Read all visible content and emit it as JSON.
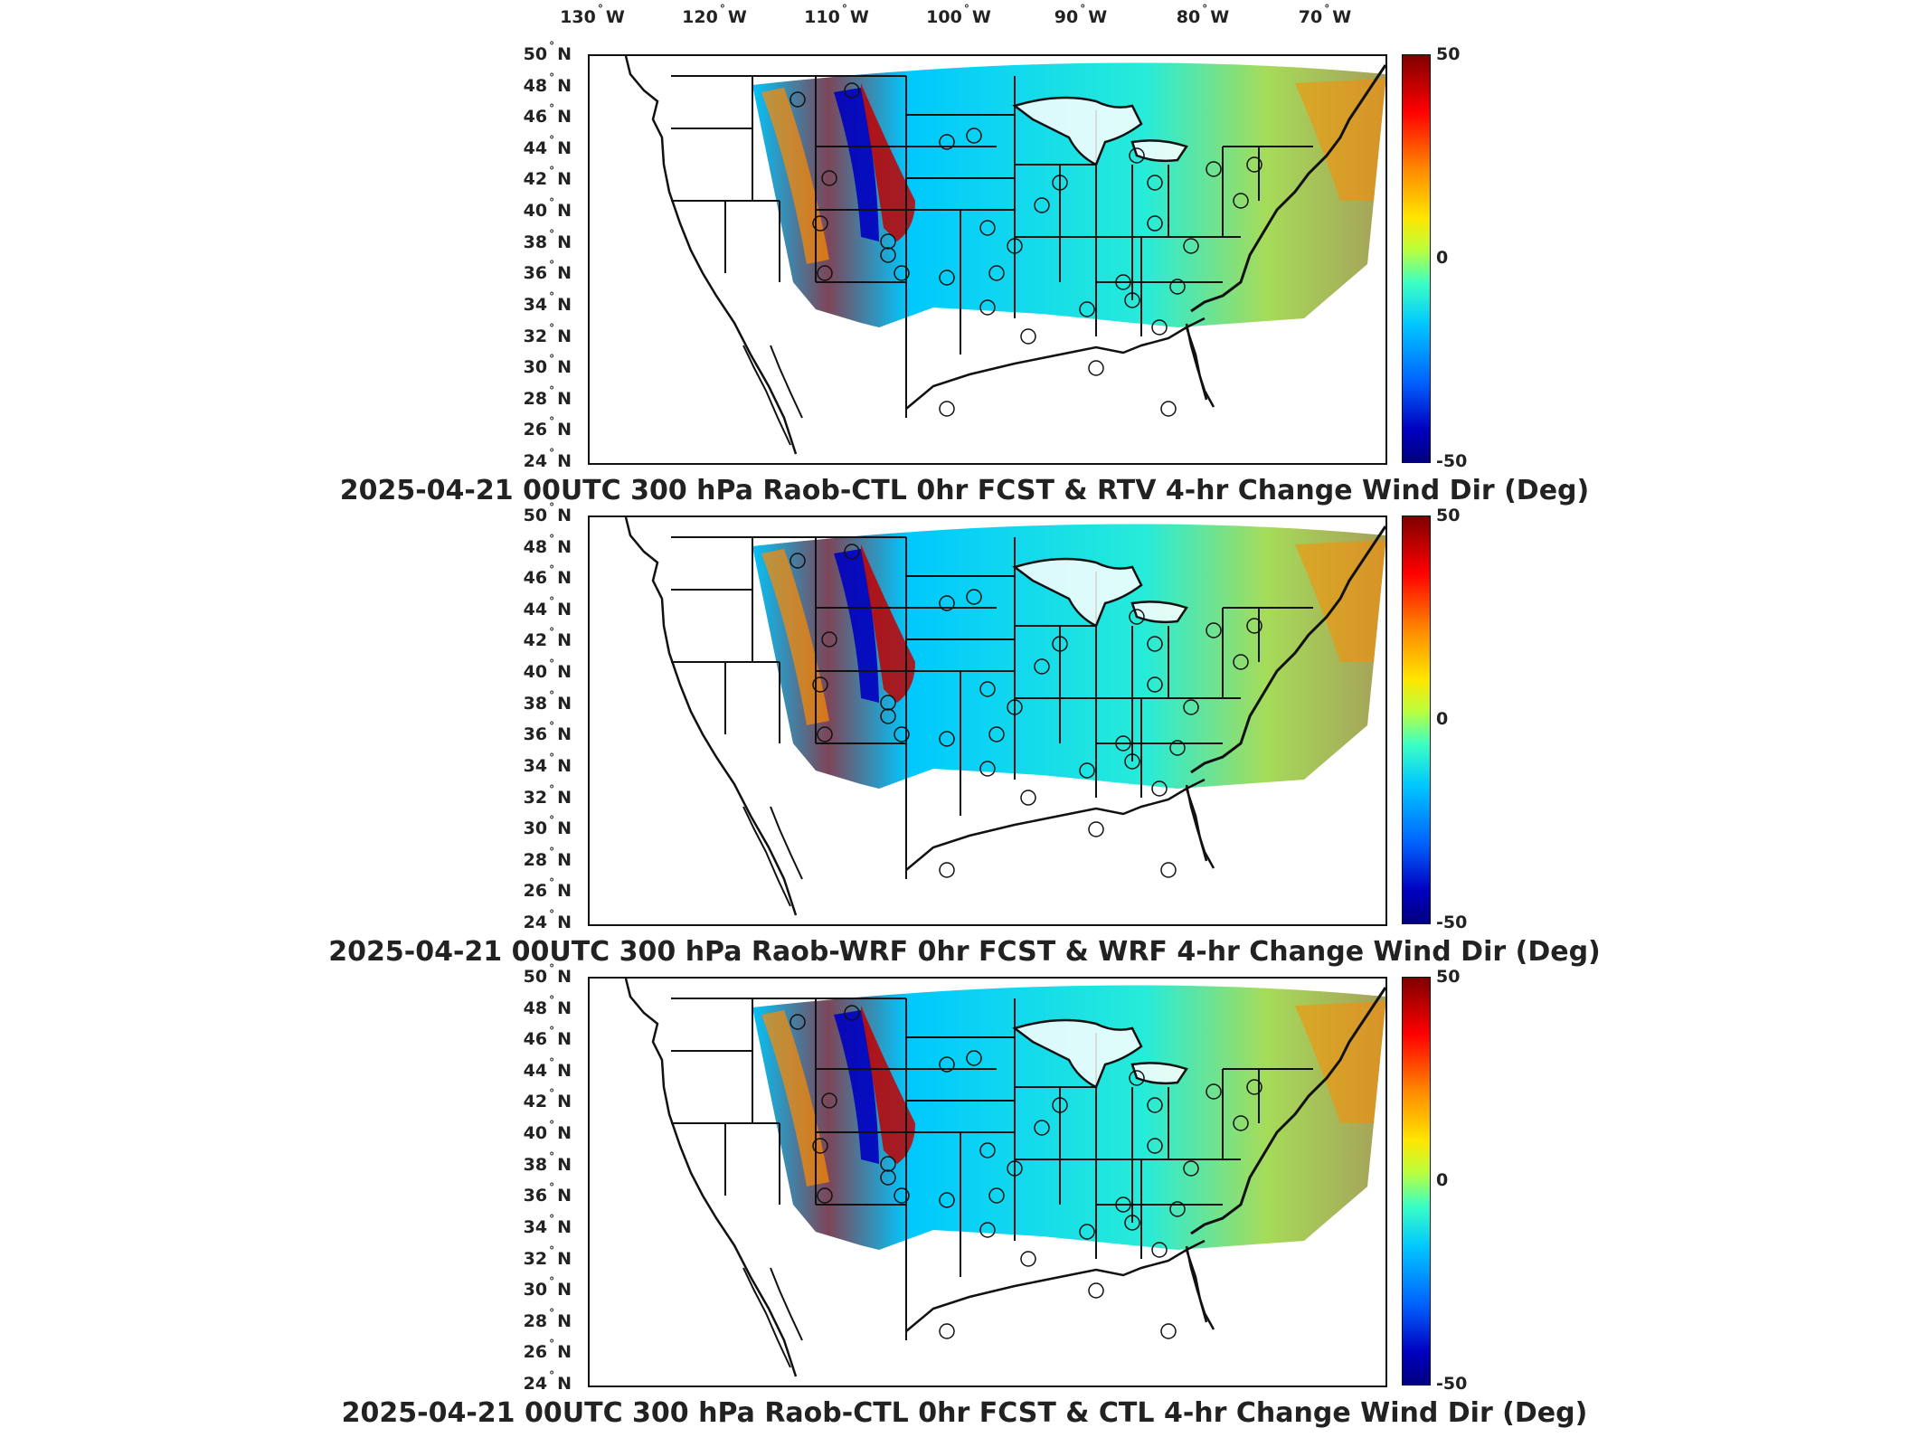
{
  "lon_labels": [
    {
      "deg": "130",
      "hemi": "W"
    },
    {
      "deg": "120",
      "hemi": "W"
    },
    {
      "deg": "110",
      "hemi": "W"
    },
    {
      "deg": "100",
      "hemi": "W"
    },
    {
      "deg": "90",
      "hemi": "W"
    },
    {
      "deg": "80",
      "hemi": "W"
    },
    {
      "deg": "70",
      "hemi": "W"
    }
  ],
  "lat_labels": [
    {
      "deg": "50",
      "hemi": "N"
    },
    {
      "deg": "48",
      "hemi": "N"
    },
    {
      "deg": "46",
      "hemi": "N"
    },
    {
      "deg": "44",
      "hemi": "N"
    },
    {
      "deg": "42",
      "hemi": "N"
    },
    {
      "deg": "40",
      "hemi": "N"
    },
    {
      "deg": "38",
      "hemi": "N"
    },
    {
      "deg": "36",
      "hemi": "N"
    },
    {
      "deg": "34",
      "hemi": "N"
    },
    {
      "deg": "32",
      "hemi": "N"
    },
    {
      "deg": "30",
      "hemi": "N"
    },
    {
      "deg": "28",
      "hemi": "N"
    },
    {
      "deg": "26",
      "hemi": "N"
    },
    {
      "deg": "24",
      "hemi": "N"
    }
  ],
  "colorbar": {
    "max": "50",
    "mid": "0",
    "min": "-50"
  },
  "colors": {
    "red": "#c00000",
    "orange": "#ff8a00",
    "yellow": "#ffe600",
    "green": "#3cffc4",
    "cyan": "#00c8ff",
    "blue": "#0000c0"
  },
  "panels": [
    {
      "title": "2025-04-21 00UTC 300 hPa Raob-CTL 0hr FCST & RTV 4-hr Change Wind Dir (Deg)"
    },
    {
      "title": "2025-04-21 00UTC 300 hPa Raob-WRF 0hr FCST & WRF 4-hr Change Wind Dir (Deg)"
    },
    {
      "title": "2025-04-21 00UTC 300 hPa Raob-CTL 0hr FCST & CTL 4-hr Change Wind Dir (Deg)"
    }
  ]
}
